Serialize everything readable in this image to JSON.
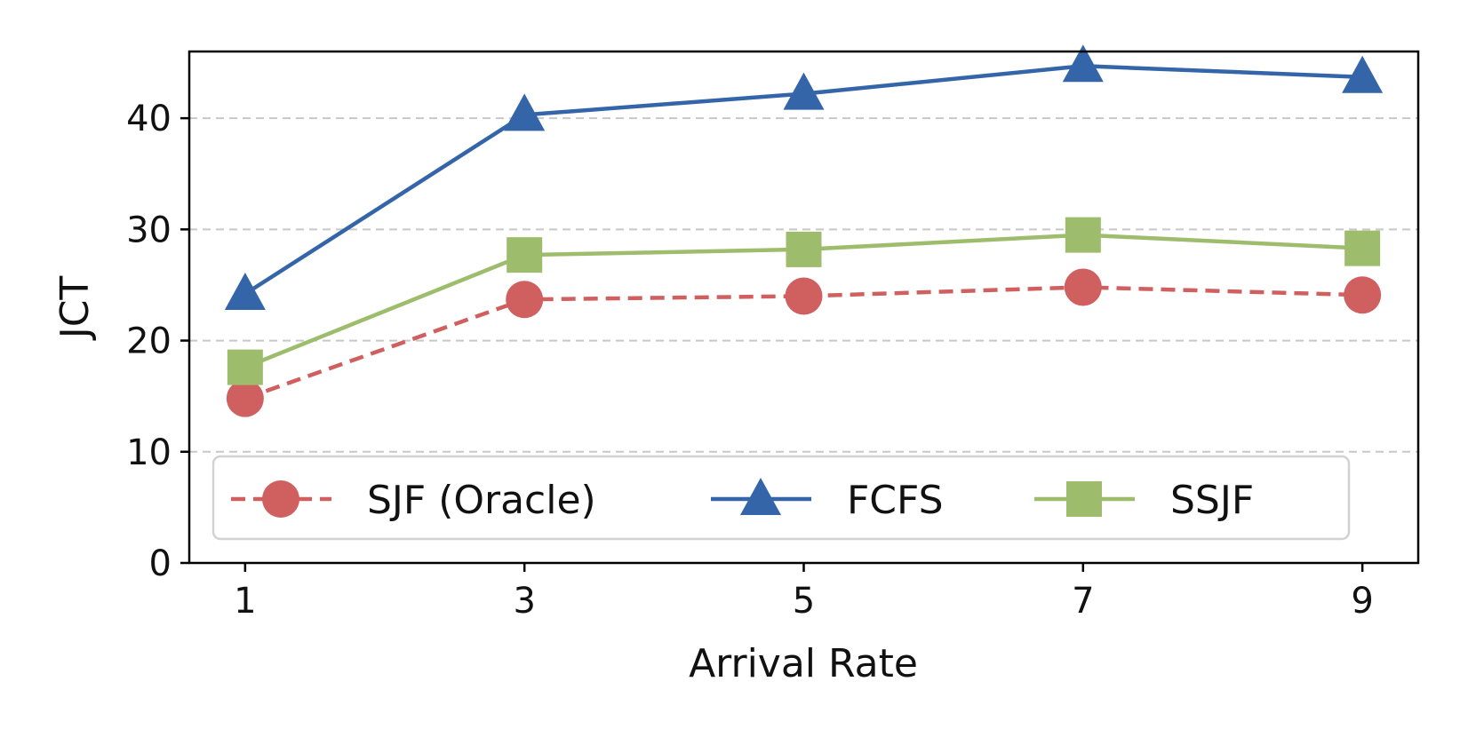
{
  "chart_data": {
    "type": "line",
    "title": "",
    "xlabel": "Arrival Rate",
    "ylabel": "JCT",
    "x": [
      1,
      3,
      5,
      7,
      9
    ],
    "xticks": [
      "1",
      "3",
      "5",
      "7",
      "9"
    ],
    "yticks": [
      "0",
      "10",
      "20",
      "30",
      "40"
    ],
    "ylim": [
      0,
      46
    ],
    "grid": "horizontal dashed",
    "legend_position": "bottom-center",
    "series": [
      {
        "name": "SJF (Oracle)",
        "values": [
          14.8,
          23.7,
          24.0,
          24.8,
          24.1
        ],
        "color": "#d05f5f",
        "marker": "circle",
        "linestyle": "dashed"
      },
      {
        "name": "FCFS",
        "values": [
          24.2,
          40.3,
          42.2,
          44.7,
          43.7
        ],
        "color": "#3465a9",
        "marker": "triangle",
        "linestyle": "solid"
      },
      {
        "name": "SSJF",
        "values": [
          17.6,
          27.7,
          28.2,
          29.5,
          28.3
        ],
        "color": "#9dbd6d",
        "marker": "square",
        "linestyle": "solid"
      }
    ]
  }
}
